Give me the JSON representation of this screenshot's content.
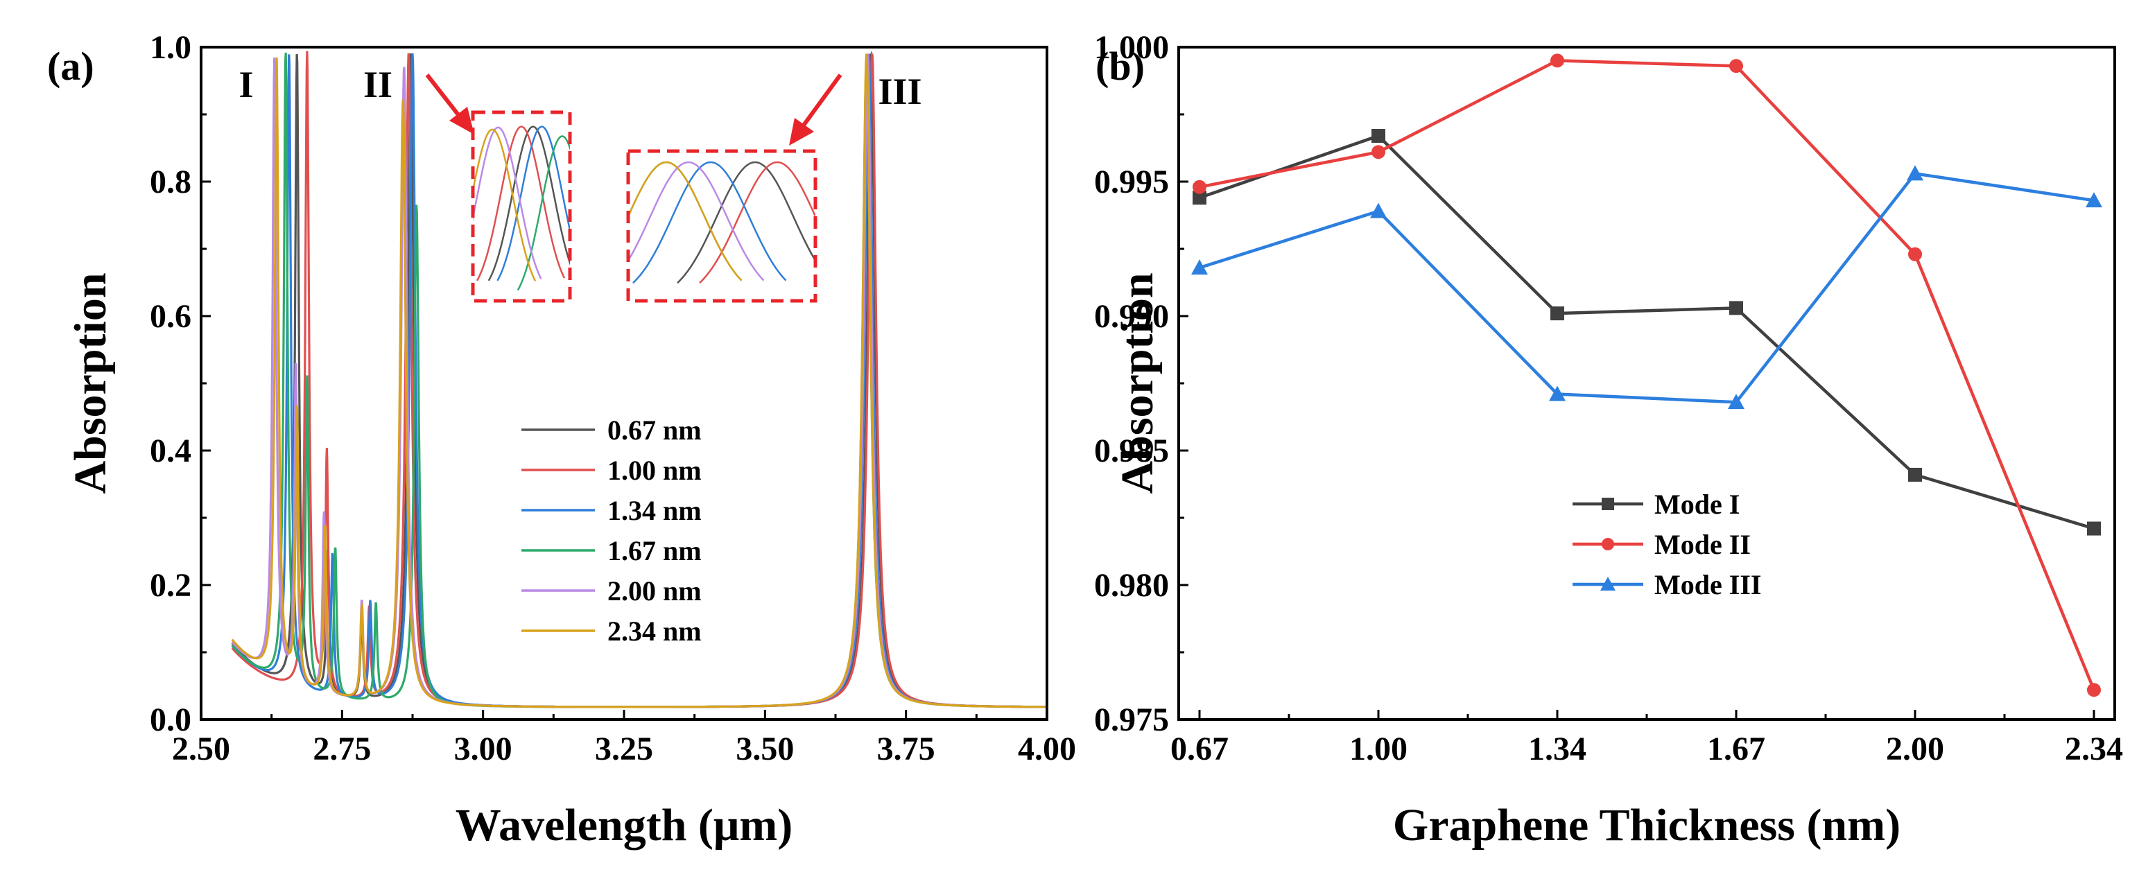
{
  "figure": {
    "panel_a_label": "(a)",
    "panel_b_label": "(b)"
  },
  "chart_data": [
    {
      "type": "line",
      "panel": "(a)",
      "title": "",
      "xlabel": "Wavelength (μm)",
      "ylabel": "Absorption",
      "xlim": [
        2.5,
        4.0
      ],
      "ylim": [
        0.0,
        1.0
      ],
      "xticks": [
        "2.50",
        "2.75",
        "3.00",
        "3.25",
        "3.50",
        "3.75",
        "4.00"
      ],
      "yticks": [
        "0.0",
        "0.2",
        "0.4",
        "0.6",
        "0.8",
        "1.0"
      ],
      "mode_labels": [
        "I",
        "II",
        "III"
      ],
      "legend_position": "center-right",
      "series": [
        {
          "name": "0.67 nm",
          "color": "#555555",
          "baseline": 0.112,
          "peaks": [
            [
              2.67,
              0.99,
              0.004
            ],
            [
              2.725,
              0.22,
              0.003
            ],
            [
              2.785,
              0.12,
              0.003
            ],
            [
              2.872,
              0.99,
              0.006
            ],
            [
              3.688,
              0.99,
              0.0085
            ]
          ]
        },
        {
          "name": "1.00 nm",
          "color": "#e05050",
          "baseline": 0.105,
          "peaks": [
            [
              2.688,
              0.99,
              0.004
            ],
            [
              2.723,
              0.37,
              0.003
            ],
            [
              2.798,
              0.14,
              0.003
            ],
            [
              2.868,
              0.99,
              0.006
            ],
            [
              3.69,
              0.99,
              0.0085
            ]
          ]
        },
        {
          "name": "1.34 nm",
          "color": "#2f7fd8",
          "baseline": 0.108,
          "peaks": [
            [
              2.656,
              0.99,
              0.004
            ],
            [
              2.733,
              0.22,
              0.003
            ],
            [
              2.8,
              0.15,
              0.003
            ],
            [
              2.875,
              0.99,
              0.006
            ],
            [
              3.684,
              0.99,
              0.0085
            ]
          ]
        },
        {
          "name": "1.67 nm",
          "color": "#2eaa6a",
          "baseline": 0.108,
          "peaks": [
            [
              2.65,
              0.99,
              0.004
            ],
            [
              2.688,
              0.48,
              0.003
            ],
            [
              2.738,
              0.23,
              0.003
            ],
            [
              2.81,
              0.15,
              0.003
            ],
            [
              2.882,
              0.76,
              0.005
            ],
            [
              3.68,
              0.98,
              0.0085
            ]
          ]
        },
        {
          "name": "2.00 nm",
          "color": "#b98ae6",
          "baseline": 0.112,
          "peaks": [
            [
              2.63,
              0.98,
              0.004
            ],
            [
              2.668,
              0.5,
              0.003
            ],
            [
              2.718,
              0.28,
              0.003
            ],
            [
              2.785,
              0.15,
              0.003
            ],
            [
              2.86,
              0.97,
              0.006
            ],
            [
              3.682,
              0.99,
              0.0085
            ]
          ]
        },
        {
          "name": "2.34 nm",
          "color": "#d9a21c",
          "baseline": 0.116,
          "peaks": [
            [
              2.634,
              0.98,
              0.004
            ],
            [
              2.67,
              0.43,
              0.003
            ],
            [
              2.72,
              0.26,
              0.003
            ],
            [
              2.785,
              0.14,
              0.003
            ],
            [
              2.858,
              0.92,
              0.006
            ],
            [
              3.68,
              0.99,
              0.0085
            ]
          ]
        }
      ]
    },
    {
      "type": "line",
      "panel": "(b)",
      "title": "",
      "xlabel": "Graphene Thickness (nm)",
      "ylabel": "Absorption",
      "categories": [
        "0.67",
        "1.00",
        "1.34",
        "1.67",
        "2.00",
        "2.34"
      ],
      "ylim": [
        0.975,
        1.0
      ],
      "yticks": [
        "0.975",
        "0.980",
        "0.985",
        "0.990",
        "0.995",
        "1.000"
      ],
      "legend_position": "lower-center",
      "series": [
        {
          "name": "Mode I",
          "marker": "square",
          "color": "#404040",
          "values": [
            0.9944,
            0.9967,
            0.9901,
            0.9903,
            0.9841,
            0.9821
          ]
        },
        {
          "name": "Mode II",
          "marker": "circle",
          "color": "#e8403f",
          "values": [
            0.9948,
            0.9961,
            0.9995,
            0.9993,
            0.9923,
            0.9761
          ]
        },
        {
          "name": "Mode III",
          "marker": "triangle",
          "color": "#2c7fde",
          "values": [
            0.9918,
            0.9939,
            0.9871,
            0.9868,
            0.9953,
            0.9943
          ]
        }
      ]
    }
  ]
}
